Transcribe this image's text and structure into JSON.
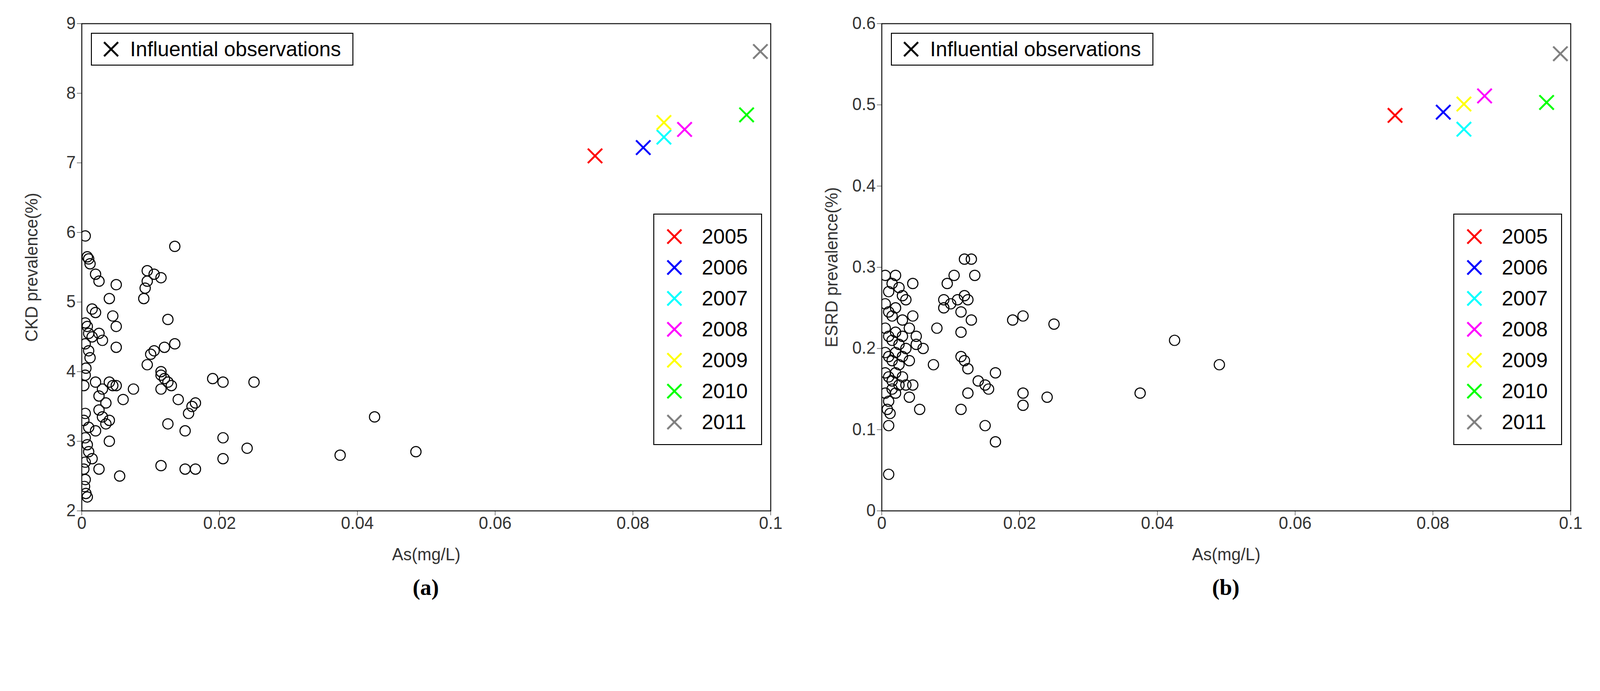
{
  "chart_data": [
    {
      "type": "scatter",
      "title": "(a)",
      "x_label": "As(mg/L)",
      "y_label": "CKD prevalence(%)",
      "xlim": [
        0,
        0.1
      ],
      "xticks": [
        0,
        0.02,
        0.04,
        0.06,
        0.08,
        0.1
      ],
      "ylim": [
        2,
        9
      ],
      "yticks": [
        2,
        3,
        4,
        5,
        6,
        7,
        8,
        9
      ],
      "legend": "right",
      "annotations": [
        "Influential observations"
      ],
      "series": [
        {
          "marker": "circle",
          "color": "#000000",
          "x": [
            0.0005,
            0.0008,
            0.001,
            0.0012,
            0.002,
            0.0025,
            0.0015,
            0.002,
            0.0005,
            0.0008,
            0.001,
            0.0015,
            0.0025,
            0.003,
            0.0005,
            0.001,
            0.0012,
            0.0006,
            0.0005,
            0.0003,
            0.002,
            0.003,
            0.0025,
            0.0035,
            0.0025,
            0.003,
            0.0005,
            0.0003,
            0.001,
            0.002,
            0.0035,
            0.004,
            0.0005,
            0.0008,
            0.001,
            0.0015,
            0.0005,
            0.0003,
            0.0005,
            0.0004,
            0.0006,
            0.0008,
            0.0025,
            0.004,
            0.004,
            0.0045,
            0.005,
            0.005,
            0.005,
            0.004,
            0.0045,
            0.005,
            0.0055,
            0.006,
            0.0075,
            0.009,
            0.0092,
            0.0095,
            0.0095,
            0.0105,
            0.0115,
            0.0095,
            0.01,
            0.0105,
            0.012,
            0.0125,
            0.0115,
            0.0115,
            0.012,
            0.0125,
            0.013,
            0.0115,
            0.0135,
            0.0135,
            0.014,
            0.0125,
            0.015,
            0.0155,
            0.016,
            0.0165,
            0.0115,
            0.015,
            0.0165,
            0.019,
            0.0205,
            0.025,
            0.0205,
            0.0205,
            0.024,
            0.0375,
            0.0425,
            0.0485
          ],
          "values": [
            5.95,
            5.65,
            5.62,
            5.55,
            5.4,
            5.3,
            4.9,
            4.85,
            4.7,
            4.65,
            4.55,
            4.5,
            4.55,
            4.45,
            4.4,
            4.3,
            4.2,
            4.05,
            3.95,
            3.8,
            3.85,
            3.75,
            3.65,
            3.55,
            3.45,
            3.35,
            3.4,
            3.3,
            3.2,
            3.15,
            3.25,
            3.3,
            3.05,
            2.95,
            2.85,
            2.75,
            2.7,
            2.6,
            2.45,
            2.35,
            2.25,
            2.2,
            2.6,
            3.0,
            5.05,
            4.8,
            4.65,
            5.25,
            4.35,
            3.85,
            3.8,
            3.8,
            2.5,
            3.6,
            3.75,
            5.05,
            5.2,
            5.3,
            5.45,
            5.4,
            5.35,
            4.1,
            4.25,
            4.3,
            4.35,
            4.75,
            4.0,
            3.95,
            3.9,
            3.85,
            3.8,
            3.75,
            5.8,
            4.4,
            3.6,
            3.25,
            3.15,
            3.4,
            3.5,
            3.55,
            2.65,
            2.6,
            2.6,
            3.9,
            3.85,
            3.85,
            3.05,
            2.75,
            2.9,
            2.8,
            3.35,
            2.85
          ]
        },
        {
          "name": "2005",
          "marker": "x",
          "color": "#ff0000",
          "x": [
            0.0745
          ],
          "values": [
            7.1
          ]
        },
        {
          "name": "2006",
          "marker": "x",
          "color": "#0000ff",
          "x": [
            0.0815
          ],
          "values": [
            7.22
          ]
        },
        {
          "name": "2007",
          "marker": "x",
          "color": "#00ffff",
          "x": [
            0.0845
          ],
          "values": [
            7.37
          ]
        },
        {
          "name": "2008",
          "marker": "x",
          "color": "#ff00ff",
          "x": [
            0.0875
          ],
          "values": [
            7.48
          ]
        },
        {
          "name": "2009",
          "marker": "x",
          "color": "#ffff00",
          "x": [
            0.0845
          ],
          "values": [
            7.58
          ]
        },
        {
          "name": "2010",
          "marker": "x",
          "color": "#00ff00",
          "x": [
            0.0965
          ],
          "values": [
            7.69
          ]
        },
        {
          "name": "2011",
          "marker": "x",
          "color": "#808080",
          "x": [
            0.0985
          ],
          "values": [
            8.6
          ]
        }
      ]
    },
    {
      "type": "scatter",
      "title": "(b)",
      "x_label": "As(mg/L)",
      "y_label": "ESRD prevalence(%)",
      "xlim": [
        0,
        0.1
      ],
      "xticks": [
        0,
        0.02,
        0.04,
        0.06,
        0.08,
        0.1
      ],
      "ylim": [
        0,
        0.6
      ],
      "yticks": [
        0,
        0.1,
        0.2,
        0.3,
        0.4,
        0.5,
        0.6
      ],
      "legend": "right",
      "annotations": [
        "Influential observations"
      ],
      "series": [
        {
          "marker": "circle",
          "color": "#000000",
          "x": [
            0.0005,
            0.001,
            0.0015,
            0.002,
            0.0025,
            0.003,
            0.0035,
            0.0045,
            0.0005,
            0.001,
            0.0015,
            0.002,
            0.003,
            0.0005,
            0.001,
            0.0015,
            0.002,
            0.0025,
            0.003,
            0.004,
            0.0045,
            0.005,
            0.0005,
            0.001,
            0.0015,
            0.002,
            0.0025,
            0.003,
            0.0035,
            0.004,
            0.0005,
            0.001,
            0.0015,
            0.002,
            0.0025,
            0.003,
            0.0035,
            0.0045,
            0.004,
            0.0005,
            0.001,
            0.0008,
            0.0012,
            0.0015,
            0.002,
            0.001,
            0.001,
            0.005,
            0.0055,
            0.006,
            0.0075,
            0.008,
            0.009,
            0.009,
            0.0095,
            0.01,
            0.0105,
            0.011,
            0.0115,
            0.0115,
            0.012,
            0.012,
            0.0125,
            0.013,
            0.013,
            0.0135,
            0.0115,
            0.012,
            0.0125,
            0.0125,
            0.0115,
            0.014,
            0.015,
            0.0155,
            0.0165,
            0.015,
            0.0165,
            0.019,
            0.0205,
            0.025,
            0.0205,
            0.0205,
            0.024,
            0.0375,
            0.0425,
            0.049
          ],
          "values": [
            0.29,
            0.27,
            0.28,
            0.29,
            0.275,
            0.265,
            0.26,
            0.28,
            0.255,
            0.245,
            0.24,
            0.25,
            0.235,
            0.225,
            0.215,
            0.21,
            0.22,
            0.205,
            0.215,
            0.225,
            0.24,
            0.215,
            0.195,
            0.19,
            0.185,
            0.195,
            0.18,
            0.19,
            0.2,
            0.185,
            0.17,
            0.165,
            0.16,
            0.17,
            0.155,
            0.165,
            0.155,
            0.155,
            0.14,
            0.145,
            0.135,
            0.125,
            0.12,
            0.15,
            0.145,
            0.105,
            0.045,
            0.205,
            0.125,
            0.2,
            0.18,
            0.225,
            0.25,
            0.26,
            0.28,
            0.255,
            0.29,
            0.26,
            0.245,
            0.22,
            0.265,
            0.31,
            0.26,
            0.31,
            0.235,
            0.29,
            0.19,
            0.185,
            0.175,
            0.145,
            0.125,
            0.16,
            0.155,
            0.15,
            0.17,
            0.105,
            0.085,
            0.235,
            0.24,
            0.23,
            0.145,
            0.13,
            0.14,
            0.145,
            0.21,
            0.18
          ]
        },
        {
          "name": "2005",
          "marker": "x",
          "color": "#ff0000",
          "x": [
            0.0745
          ],
          "values": [
            0.487
          ]
        },
        {
          "name": "2006",
          "marker": "x",
          "color": "#0000ff",
          "x": [
            0.0815
          ],
          "values": [
            0.491
          ]
        },
        {
          "name": "2007",
          "marker": "x",
          "color": "#00ffff",
          "x": [
            0.0845
          ],
          "values": [
            0.47
          ]
        },
        {
          "name": "2008",
          "marker": "x",
          "color": "#ff00ff",
          "x": [
            0.0875
          ],
          "values": [
            0.511
          ]
        },
        {
          "name": "2009",
          "marker": "x",
          "color": "#ffff00",
          "x": [
            0.0845
          ],
          "values": [
            0.501
          ]
        },
        {
          "name": "2010",
          "marker": "x",
          "color": "#00ff00",
          "x": [
            0.0965
          ],
          "values": [
            0.503
          ]
        },
        {
          "name": "2011",
          "marker": "x",
          "color": "#808080",
          "x": [
            0.0985
          ],
          "values": [
            0.563
          ]
        }
      ]
    }
  ]
}
